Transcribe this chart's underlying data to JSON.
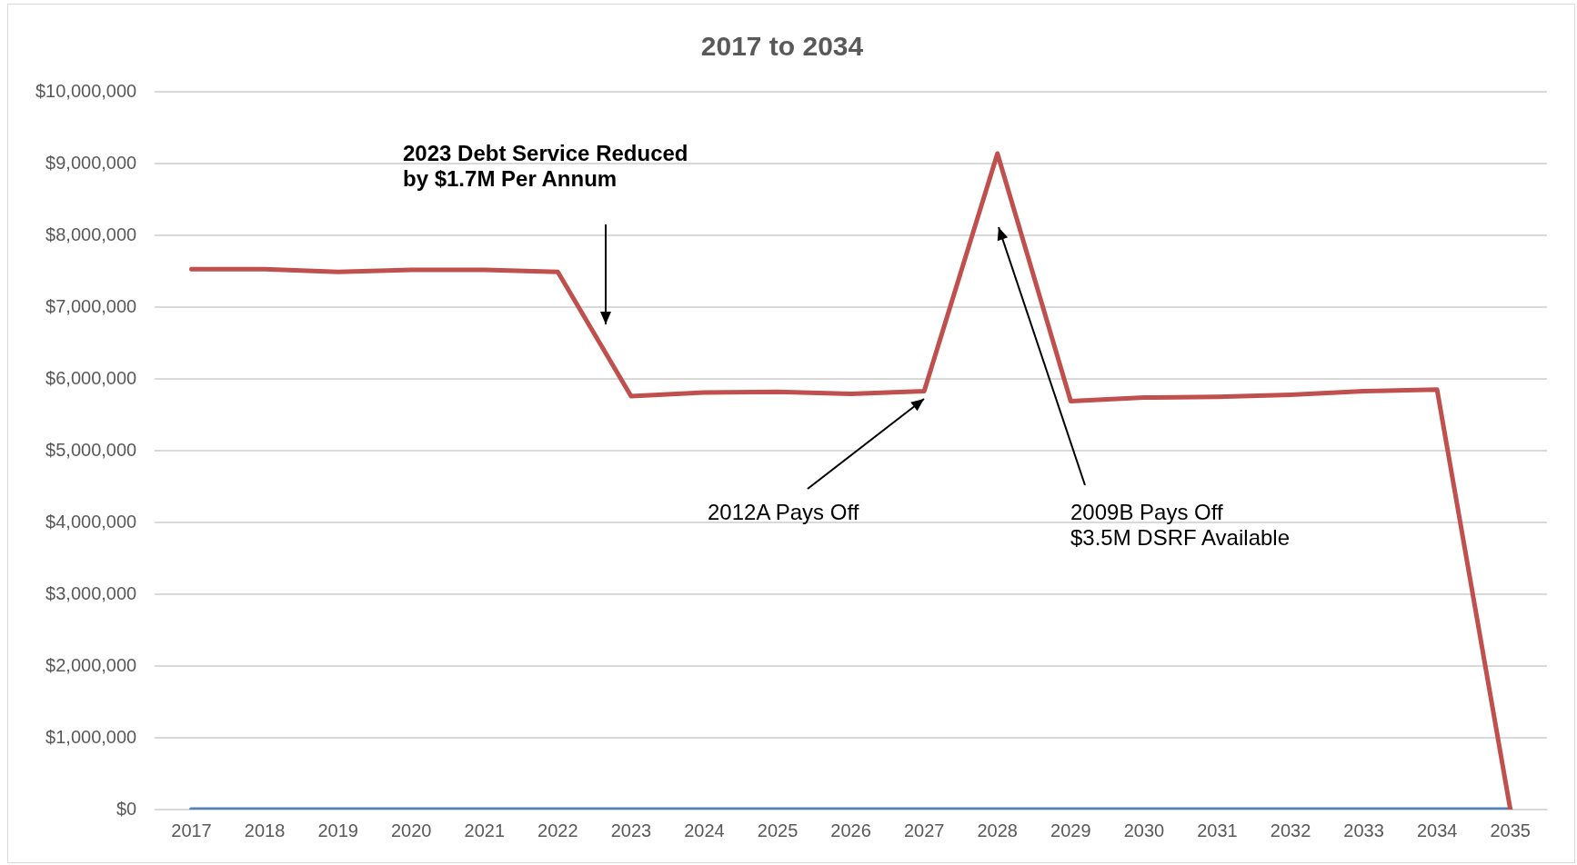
{
  "chart_data": {
    "type": "line",
    "title": "2017 to 2034",
    "categories": [
      "2017",
      "2018",
      "2019",
      "2020",
      "2021",
      "2022",
      "2023",
      "2024",
      "2025",
      "2026",
      "2027",
      "2028",
      "2029",
      "2030",
      "2031",
      "2032",
      "2033",
      "2034",
      "2035"
    ],
    "series": [
      {
        "color": "#c0504d",
        "values": [
          7530000,
          7530000,
          7490000,
          7520000,
          7520000,
          7490000,
          5760000,
          5810000,
          5820000,
          5790000,
          5830000,
          9140000,
          5690000,
          5740000,
          5750000,
          5780000,
          5830000,
          5850000,
          0
        ]
      },
      {
        "color": "#4f81bd",
        "values": [
          0,
          0,
          0,
          0,
          0,
          0,
          0,
          0,
          0,
          0,
          0,
          0,
          0,
          0,
          0,
          0,
          0,
          0,
          0
        ]
      }
    ],
    "ylim": [
      0,
      10000000
    ],
    "yticks": [
      {
        "value": 0,
        "label": "$0"
      },
      {
        "value": 1000000,
        "label": "$1,000,000"
      },
      {
        "value": 2000000,
        "label": "$2,000,000"
      },
      {
        "value": 3000000,
        "label": "$3,000,000"
      },
      {
        "value": 4000000,
        "label": "$4,000,000"
      },
      {
        "value": 5000000,
        "label": "$5,000,000"
      },
      {
        "value": 6000000,
        "label": "$6,000,000"
      },
      {
        "value": 7000000,
        "label": "$7,000,000"
      },
      {
        "value": 8000000,
        "label": "$8,000,000"
      },
      {
        "value": 9000000,
        "label": "$9,000,000"
      },
      {
        "value": 10000000,
        "label": "$10,000,000"
      }
    ],
    "grid": "y",
    "legend": false,
    "marker": "none",
    "line_style": "solid",
    "annotations": [
      "2023 Debt Service Reduced\nby $1.7M Per Annum",
      "2012A Pays Off",
      "2009B Pays Off\n$3.5M DSRF Available"
    ]
  }
}
